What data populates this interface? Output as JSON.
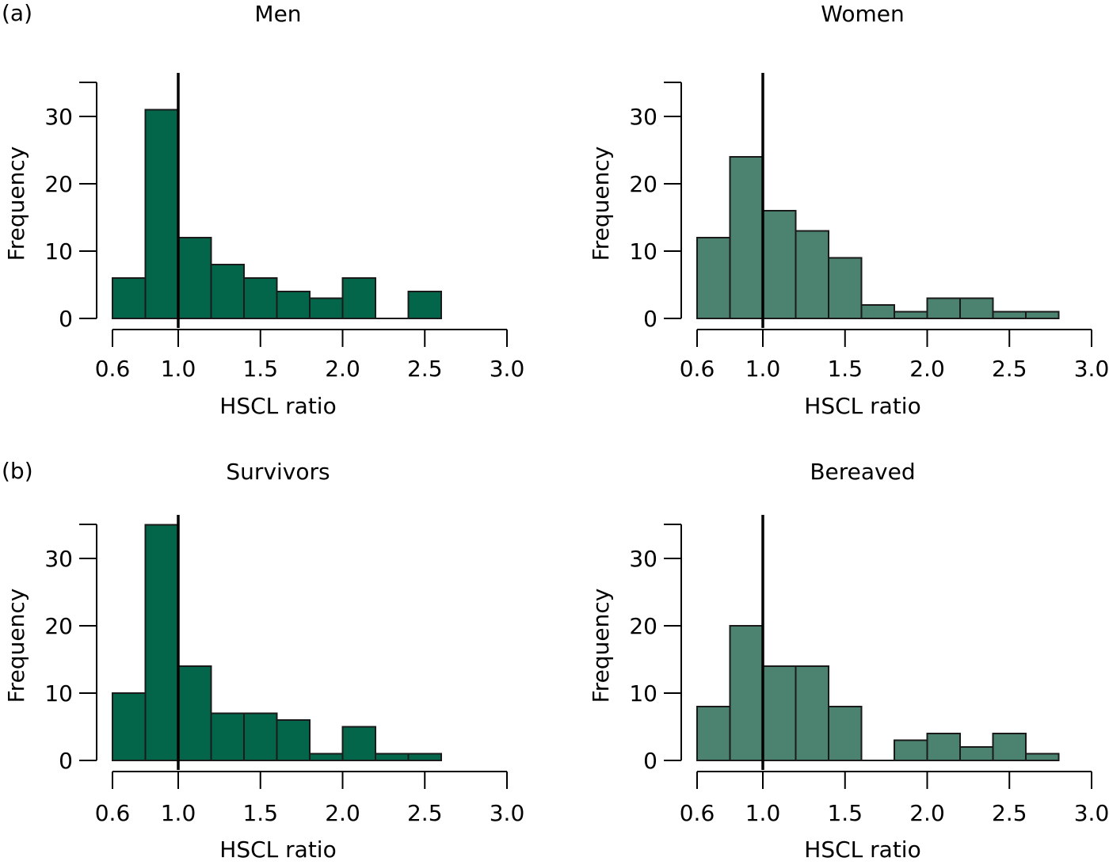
{
  "panel_labels": [
    "(a)",
    "(b)"
  ],
  "colors": {
    "dark_green": "#03654a",
    "light_green": "#4c8370",
    "edge": "#1a1a1a",
    "refline": "#000000"
  },
  "chart_data": [
    {
      "type": "bar",
      "title": "Men",
      "xlabel": "HSCL ratio",
      "ylabel": "Frequency",
      "fill": "dark_green",
      "xlim": [
        0.6,
        3.0
      ],
      "ylim": [
        0,
        35
      ],
      "xticks": [
        "0.6",
        "1.0",
        "1.5",
        "2.0",
        "2.5",
        "3.0"
      ],
      "yticks": [
        "0",
        "10",
        "20",
        "30"
      ],
      "reference_x": 1.0,
      "bins": [
        {
          "x0": 0.6,
          "x1": 0.8,
          "count": 6
        },
        {
          "x0": 0.8,
          "x1": 1.0,
          "count": 31
        },
        {
          "x0": 1.0,
          "x1": 1.2,
          "count": 12
        },
        {
          "x0": 1.2,
          "x1": 1.4,
          "count": 8
        },
        {
          "x0": 1.4,
          "x1": 1.6,
          "count": 6
        },
        {
          "x0": 1.6,
          "x1": 1.8,
          "count": 4
        },
        {
          "x0": 1.8,
          "x1": 2.0,
          "count": 3
        },
        {
          "x0": 2.0,
          "x1": 2.2,
          "count": 6
        },
        {
          "x0": 2.2,
          "x1": 2.4,
          "count": 0
        },
        {
          "x0": 2.4,
          "x1": 2.6,
          "count": 4
        }
      ]
    },
    {
      "type": "bar",
      "title": "Women",
      "xlabel": "HSCL ratio",
      "ylabel": "Frequency",
      "fill": "light_green",
      "xlim": [
        0.6,
        3.0
      ],
      "ylim": [
        0,
        35
      ],
      "xticks": [
        "0.6",
        "1.0",
        "1.5",
        "2.0",
        "2.5",
        "3.0"
      ],
      "yticks": [
        "0",
        "10",
        "20",
        "30"
      ],
      "reference_x": 1.0,
      "bins": [
        {
          "x0": 0.6,
          "x1": 0.8,
          "count": 12
        },
        {
          "x0": 0.8,
          "x1": 1.0,
          "count": 24
        },
        {
          "x0": 1.0,
          "x1": 1.2,
          "count": 16
        },
        {
          "x0": 1.2,
          "x1": 1.4,
          "count": 13
        },
        {
          "x0": 1.4,
          "x1": 1.6,
          "count": 9
        },
        {
          "x0": 1.6,
          "x1": 1.8,
          "count": 2
        },
        {
          "x0": 1.8,
          "x1": 2.0,
          "count": 1
        },
        {
          "x0": 2.0,
          "x1": 2.2,
          "count": 3
        },
        {
          "x0": 2.2,
          "x1": 2.4,
          "count": 3
        },
        {
          "x0": 2.4,
          "x1": 2.6,
          "count": 1
        },
        {
          "x0": 2.6,
          "x1": 2.8,
          "count": 1
        }
      ]
    },
    {
      "type": "bar",
      "title": "Survivors",
      "xlabel": "HSCL ratio",
      "ylabel": "Frequency",
      "fill": "dark_green",
      "xlim": [
        0.6,
        3.0
      ],
      "ylim": [
        0,
        35
      ],
      "xticks": [
        "0.6",
        "1.0",
        "1.5",
        "2.0",
        "2.5",
        "3.0"
      ],
      "yticks": [
        "0",
        "10",
        "20",
        "30"
      ],
      "reference_x": 1.0,
      "bins": [
        {
          "x0": 0.6,
          "x1": 0.8,
          "count": 10
        },
        {
          "x0": 0.8,
          "x1": 1.0,
          "count": 35
        },
        {
          "x0": 1.0,
          "x1": 1.2,
          "count": 14
        },
        {
          "x0": 1.2,
          "x1": 1.4,
          "count": 7
        },
        {
          "x0": 1.4,
          "x1": 1.6,
          "count": 7
        },
        {
          "x0": 1.6,
          "x1": 1.8,
          "count": 6
        },
        {
          "x0": 1.8,
          "x1": 2.0,
          "count": 1
        },
        {
          "x0": 2.0,
          "x1": 2.2,
          "count": 5
        },
        {
          "x0": 2.2,
          "x1": 2.4,
          "count": 1
        },
        {
          "x0": 2.4,
          "x1": 2.6,
          "count": 1
        }
      ]
    },
    {
      "type": "bar",
      "title": "Bereaved",
      "xlabel": "HSCL ratio",
      "ylabel": "Frequency",
      "fill": "light_green",
      "xlim": [
        0.6,
        3.0
      ],
      "ylim": [
        0,
        35
      ],
      "xticks": [
        "0.6",
        "1.0",
        "1.5",
        "2.0",
        "2.5",
        "3.0"
      ],
      "yticks": [
        "0",
        "10",
        "20",
        "30"
      ],
      "reference_x": 1.0,
      "bins": [
        {
          "x0": 0.6,
          "x1": 0.8,
          "count": 8
        },
        {
          "x0": 0.8,
          "x1": 1.0,
          "count": 20
        },
        {
          "x0": 1.0,
          "x1": 1.2,
          "count": 14
        },
        {
          "x0": 1.2,
          "x1": 1.4,
          "count": 14
        },
        {
          "x0": 1.4,
          "x1": 1.6,
          "count": 8
        },
        {
          "x0": 1.6,
          "x1": 1.8,
          "count": 0
        },
        {
          "x0": 1.8,
          "x1": 2.0,
          "count": 3
        },
        {
          "x0": 2.0,
          "x1": 2.2,
          "count": 4
        },
        {
          "x0": 2.2,
          "x1": 2.4,
          "count": 2
        },
        {
          "x0": 2.4,
          "x1": 2.6,
          "count": 4
        },
        {
          "x0": 2.6,
          "x1": 2.8,
          "count": 1
        }
      ]
    }
  ]
}
